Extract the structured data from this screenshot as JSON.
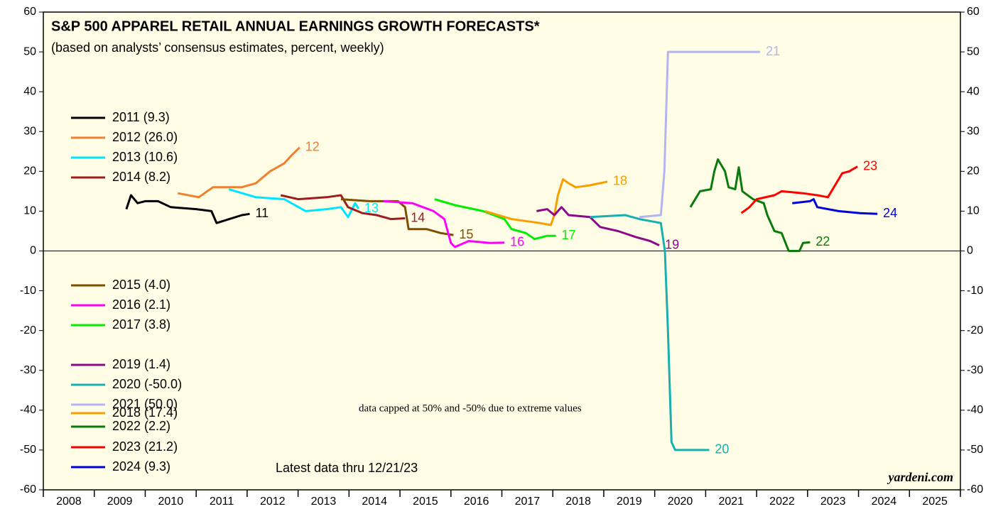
{
  "chart_data": {
    "type": "line",
    "title": "S&P 500 APPAREL RETAIL ANNUAL EARNINGS GROWTH FORECASTS*",
    "subtitle": "(based on analysts’ consensus estimates, percent, weekly)",
    "annotations": [
      "data capped at 50% and -50% due to extreme values",
      "Latest data thru 12/21/23",
      "yardeni.com"
    ],
    "xlim": [
      2008,
      2026
    ],
    "xticks": [
      2008,
      2009,
      2010,
      2011,
      2012,
      2013,
      2014,
      2015,
      2016,
      2017,
      2018,
      2019,
      2020,
      2021,
      2022,
      2023,
      2024,
      2025,
      2026
    ],
    "xlabels": [
      "2008",
      "2009",
      "2010",
      "2011",
      "2012",
      "2013",
      "2014",
      "2015",
      "2016",
      "2017",
      "2018",
      "2019",
      "2020",
      "2021",
      "2022",
      "2023",
      "2024",
      "2025"
    ],
    "ylim": [
      -60,
      60
    ],
    "yticks": [
      -60,
      -50,
      -40,
      -30,
      -20,
      -10,
      0,
      10,
      20,
      30,
      40,
      50,
      60
    ],
    "y2lim": [
      -60,
      60
    ],
    "y2ticks": [
      -60,
      -50,
      -40,
      -30,
      -20,
      -10,
      0,
      10,
      20,
      30,
      40,
      50,
      60
    ],
    "series": [
      {
        "name": "2011 (9.3)",
        "label": "11",
        "color": "#000000",
        "x": [
          2009.63,
          2009.72,
          2009.85,
          2010.0,
          2010.25,
          2010.5,
          2011.0,
          2011.3,
          2011.4,
          2011.65,
          2011.9,
          2012.05
        ],
        "values": [
          10.5,
          14,
          12,
          12.5,
          12.5,
          11,
          10.5,
          10,
          7,
          8,
          9,
          9.3
        ]
      },
      {
        "name": "2012 (26.0)",
        "label": "12",
        "color": "#f07f2e",
        "x": [
          2010.64,
          2011.05,
          2011.33,
          2011.89,
          2012.17,
          2012.45,
          2012.73,
          2012.87,
          2013.03
        ],
        "values": [
          14.5,
          13.5,
          16,
          16,
          17,
          20,
          22,
          24,
          26
        ]
      },
      {
        "name": "2013 (10.6)",
        "label": "13",
        "color": "#00e5ff",
        "x": [
          2011.64,
          2012.17,
          2012.73,
          2013.15,
          2013.56,
          2013.84,
          2013.98,
          2014.12,
          2014.19
        ],
        "values": [
          15.5,
          13.5,
          13,
          10,
          10.5,
          11,
          8.5,
          12,
          10.6
        ]
      },
      {
        "name": "2014 (8.2)",
        "label": "14",
        "color": "#a01c1c",
        "x": [
          2012.66,
          2013.0,
          2013.56,
          2013.84,
          2013.98,
          2014.26,
          2014.54,
          2014.82,
          2015.1
        ],
        "values": [
          14,
          13,
          13.5,
          14,
          11,
          9.5,
          9,
          8,
          8.2
        ]
      },
      {
        "name": "2015 (4.0)",
        "label": "15",
        "color": "#7f4f00",
        "x": [
          2013.84,
          2014.4,
          2014.96,
          2015.1,
          2015.17,
          2015.52,
          2015.8,
          2016.05
        ],
        "values": [
          13,
          12.5,
          12.5,
          11,
          5.5,
          5.5,
          4.5,
          4
        ]
      },
      {
        "name": "2016 (2.1)",
        "label": "16",
        "color": "#ff00ff",
        "x": [
          2014.68,
          2015.24,
          2015.66,
          2015.87,
          2016.0,
          2016.08,
          2016.35,
          2016.77,
          2017.05
        ],
        "values": [
          12.5,
          12,
          10,
          8,
          2,
          1,
          2.5,
          2,
          2.1
        ]
      },
      {
        "name": "2017 (3.8)",
        "label": "17",
        "color": "#00ee00",
        "x": [
          2015.68,
          2016.08,
          2016.63,
          2017.05,
          2017.19,
          2017.47,
          2017.64,
          2017.89,
          2018.06
        ],
        "values": [
          13,
          11.5,
          10,
          8,
          5.5,
          4.5,
          3,
          3.8,
          3.8
        ]
      },
      {
        "name": "2018 (17.4)",
        "label": "18",
        "color": "#f5a000",
        "x": [
          2016.67,
          2017.19,
          2017.75,
          2017.96,
          2018.03,
          2018.1,
          2018.2,
          2018.31,
          2018.45,
          2018.73,
          2019.07
        ],
        "values": [
          10,
          8,
          7,
          6.5,
          9,
          14,
          18,
          17,
          16,
          16.5,
          17.4
        ]
      },
      {
        "name": "2019 (1.4)",
        "label": "19",
        "color": "#8b0a8b",
        "x": [
          2017.68,
          2017.89,
          2018.03,
          2018.17,
          2018.31,
          2018.73,
          2018.93,
          2019.28,
          2019.63,
          2019.91,
          2020.09
        ],
        "values": [
          10,
          10.5,
          9,
          11,
          9,
          8.5,
          6,
          5,
          3.5,
          2.5,
          1.4
        ]
      },
      {
        "name": "2020 (-50.0)",
        "label": "20",
        "color": "#1aafaf",
        "x": [
          2018.73,
          2019.14,
          2019.42,
          2019.7,
          2020.12,
          2020.2,
          2020.26,
          2020.33,
          2020.4,
          2021.07
        ],
        "values": [
          8.5,
          8.8,
          9,
          8,
          7,
          0,
          -20,
          -48,
          -50,
          -50
        ]
      },
      {
        "name": "2021 (50.0)",
        "label": "21",
        "color": "#b4b4f0",
        "x": [
          2019.7,
          2020.12,
          2020.19,
          2020.26,
          2022.07
        ],
        "values": [
          8.5,
          9,
          20,
          50,
          50
        ]
      },
      {
        "name": "2022 (2.2)",
        "label": "22",
        "color": "#0a7a0a",
        "x": [
          2020.7,
          2020.89,
          2021.1,
          2021.17,
          2021.24,
          2021.38,
          2021.45,
          2021.58,
          2021.65,
          2021.72,
          2021.93,
          2022.14,
          2022.21,
          2022.35,
          2022.49,
          2022.63,
          2022.84,
          2022.91,
          2023.05
        ],
        "values": [
          11,
          15,
          15.5,
          20,
          23,
          20,
          16,
          15.5,
          21,
          15,
          13,
          12,
          9,
          5,
          4.5,
          0,
          0,
          2,
          2.2
        ]
      },
      {
        "name": "2023 (21.2)",
        "label": "23",
        "color": "#ff0000",
        "x": [
          2021.7,
          2021.86,
          2022.0,
          2022.35,
          2022.49,
          2022.91,
          2023.19,
          2023.4,
          2023.68,
          2023.82,
          2023.98
        ],
        "values": [
          9.5,
          11,
          13,
          14,
          15,
          14.5,
          14,
          13.5,
          19.5,
          20,
          21.2
        ]
      },
      {
        "name": "2024 (9.3)",
        "label": "24",
        "color": "#0000dd",
        "x": [
          2022.7,
          2023.05,
          2023.12,
          2023.19,
          2023.61,
          2024.03,
          2024.37
        ],
        "values": [
          12,
          12.5,
          13,
          11,
          10,
          9.5,
          9.3
        ]
      }
    ]
  }
}
